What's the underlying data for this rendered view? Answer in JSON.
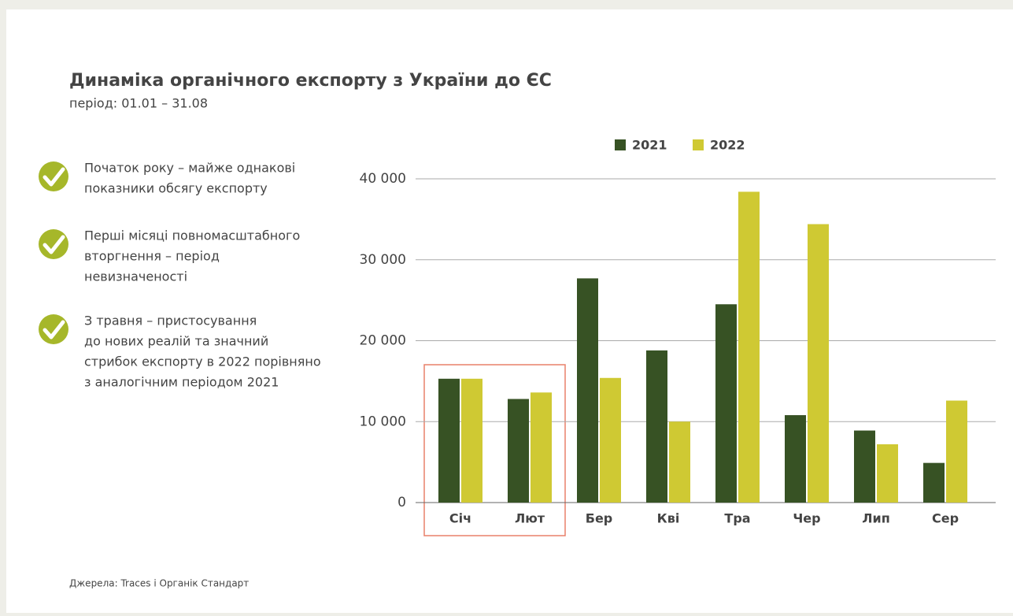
{
  "chart_data": {
    "type": "bar",
    "title": "Динаміка органічного експорту з України до ЄС",
    "subtitle": "період: 01.01 – 31.08",
    "categories": [
      "Січ",
      "Лют",
      "Бер",
      "Кві",
      "Тра",
      "Чер",
      "Лип",
      "Сер"
    ],
    "series": [
      {
        "name": "2021",
        "color": "#375224",
        "values": [
          15300,
          12800,
          27700,
          18800,
          24500,
          10800,
          8900,
          4900
        ]
      },
      {
        "name": "2022",
        "color": "#cfc933",
        "values": [
          15300,
          13600,
          15400,
          10000,
          38400,
          34400,
          7200,
          12600
        ]
      }
    ],
    "ylim": [
      0,
      40000
    ],
    "yticks": [
      0,
      {
        "value": 10000,
        "label": "10 000"
      },
      {
        "value": 20000,
        "label": "20 000"
      },
      {
        "value": 30000,
        "label": "30 000"
      },
      {
        "value": 40000,
        "label": "40 000"
      }
    ],
    "grid": true
  },
  "bullets": [
    [
      "Початок року – майже однакові",
      "показники обсягу експорту"
    ],
    [
      "Перші місяці повномасштабного",
      "вторгнення – період",
      "невизначеності"
    ],
    [
      "З травня – пристосування",
      "до нових реалій та значний",
      "стрибок експорту в 2022 порівняно",
      "з аналогічним періодом 2021"
    ]
  ],
  "source": "Джерела: Traces і Органік Стандарт"
}
